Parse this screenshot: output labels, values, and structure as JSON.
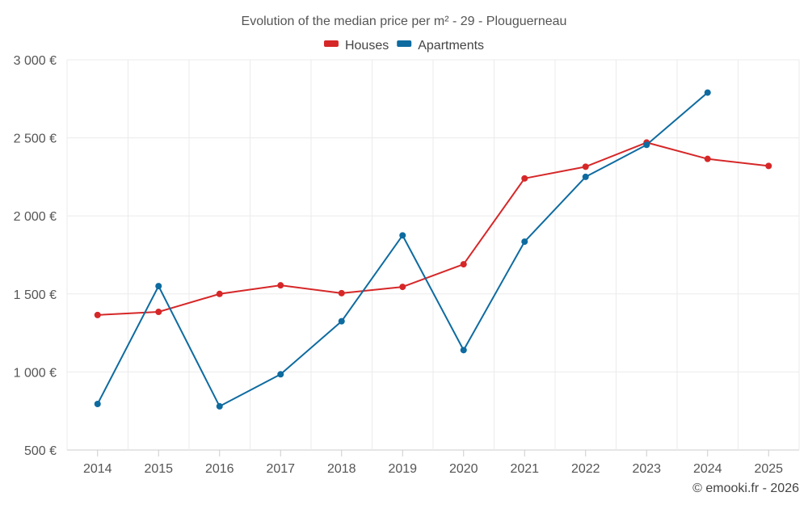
{
  "chart_data": {
    "type": "line",
    "title": "Evolution of the median price per m² - 29 - Plouguerneau",
    "categories": [
      "2014",
      "2015",
      "2016",
      "2017",
      "2018",
      "2019",
      "2020",
      "2021",
      "2022",
      "2023",
      "2024",
      "2025"
    ],
    "series": [
      {
        "name": "Houses",
        "color": "#d62728",
        "values": [
          1365,
          1385,
          1500,
          1555,
          1505,
          1545,
          1690,
          2240,
          2315,
          2470,
          2365,
          2320
        ]
      },
      {
        "name": "Apartments",
        "color": "#0e6ba0",
        "values": [
          795,
          1550,
          780,
          985,
          1325,
          1875,
          1140,
          1835,
          2250,
          2455,
          2790,
          null
        ]
      }
    ],
    "yticks": [
      500,
      1000,
      1500,
      2000,
      2500,
      3000
    ],
    "ytick_labels": [
      "500 €",
      "1 000 €",
      "1 500 €",
      "2 000 €",
      "2 500 €",
      "3 000 €"
    ],
    "ylim": [
      500,
      3000
    ],
    "xlabel": "",
    "ylabel": "",
    "grid": true,
    "legend_position": "top-center"
  },
  "credit": "© emooki.fr - 2026"
}
